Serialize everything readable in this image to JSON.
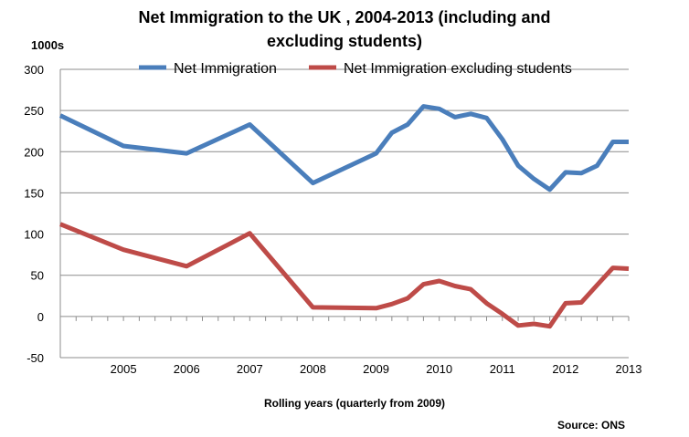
{
  "chart_data": {
    "type": "line",
    "title_line1": "Net Immigration to the UK , 2004-2013 (including and",
    "title_line2": "excluding students)",
    "yunit": "1000s",
    "xlabel": "Rolling years (quarterly from 2009)",
    "source": "Source:  ONS",
    "ylim": [
      -50,
      300
    ],
    "yticks": [
      "300",
      "250",
      "200",
      "150",
      "100",
      "50",
      "0",
      "-50"
    ],
    "x_categories": [
      "2005",
      "2006",
      "2007",
      "2008",
      "2009",
      "2010",
      "2011",
      "2012",
      "2013"
    ],
    "grid": true,
    "legend_position": "top",
    "series": [
      {
        "name": "Net Immigration",
        "color": "#4a7ebb",
        "points": [
          {
            "x": 2004.0,
            "y": 244
          },
          {
            "x": 2005.0,
            "y": 207
          },
          {
            "x": 2006.0,
            "y": 198
          },
          {
            "x": 2007.0,
            "y": 233
          },
          {
            "x": 2008.0,
            "y": 162
          },
          {
            "x": 2009.0,
            "y": 198
          },
          {
            "x": 2009.25,
            "y": 223
          },
          {
            "x": 2009.5,
            "y": 233
          },
          {
            "x": 2009.75,
            "y": 255
          },
          {
            "x": 2010.0,
            "y": 252
          },
          {
            "x": 2010.25,
            "y": 242
          },
          {
            "x": 2010.5,
            "y": 246
          },
          {
            "x": 2010.75,
            "y": 241
          },
          {
            "x": 2011.0,
            "y": 215
          },
          {
            "x": 2011.25,
            "y": 183
          },
          {
            "x": 2011.5,
            "y": 167
          },
          {
            "x": 2011.75,
            "y": 154
          },
          {
            "x": 2012.0,
            "y": 175
          },
          {
            "x": 2012.25,
            "y": 174
          },
          {
            "x": 2012.5,
            "y": 183
          },
          {
            "x": 2012.75,
            "y": 212
          },
          {
            "x": 2013.0,
            "y": 212
          }
        ]
      },
      {
        "name": "Net Immigration excluding students",
        "color": "#be4b48",
        "points": [
          {
            "x": 2004.0,
            "y": 112
          },
          {
            "x": 2005.0,
            "y": 81
          },
          {
            "x": 2006.0,
            "y": 61
          },
          {
            "x": 2007.0,
            "y": 101
          },
          {
            "x": 2008.0,
            "y": 11
          },
          {
            "x": 2009.0,
            "y": 10
          },
          {
            "x": 2009.25,
            "y": 15
          },
          {
            "x": 2009.5,
            "y": 22
          },
          {
            "x": 2009.75,
            "y": 39
          },
          {
            "x": 2010.0,
            "y": 43
          },
          {
            "x": 2010.25,
            "y": 37
          },
          {
            "x": 2010.5,
            "y": 33
          },
          {
            "x": 2010.75,
            "y": 16
          },
          {
            "x": 2011.0,
            "y": 3
          },
          {
            "x": 2011.25,
            "y": -11
          },
          {
            "x": 2011.5,
            "y": -9
          },
          {
            "x": 2011.75,
            "y": -12
          },
          {
            "x": 2012.0,
            "y": 16
          },
          {
            "x": 2012.25,
            "y": 17
          },
          {
            "x": 2012.5,
            "y": 38
          },
          {
            "x": 2012.75,
            "y": 59
          },
          {
            "x": 2013.0,
            "y": 58
          }
        ]
      }
    ]
  }
}
